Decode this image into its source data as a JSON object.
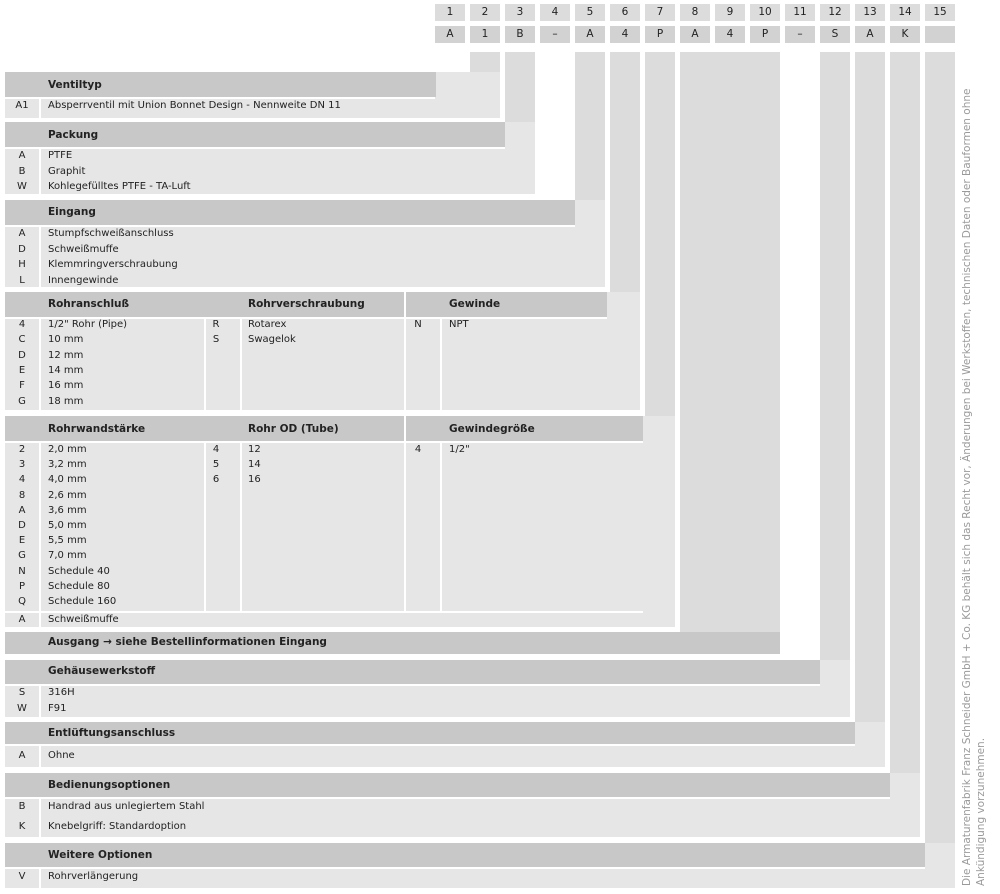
{
  "positions": [
    "1",
    "2",
    "3",
    "4",
    "5",
    "6",
    "7",
    "8",
    "9",
    "10",
    "11",
    "12",
    "13",
    "14",
    "15"
  ],
  "code_values": [
    "A",
    "1",
    "B",
    "–",
    "A",
    "4",
    "P",
    "A",
    "4",
    "P",
    "–",
    "S",
    "A",
    "K",
    ""
  ],
  "sections": {
    "ventiltyp": {
      "title": "Ventiltyp",
      "rows": [
        {
          "code": "A1",
          "text": "Absperrventil mit Union Bonnet Design - Nennweite DN 11"
        }
      ]
    },
    "packung": {
      "title": "Packung",
      "rows": [
        {
          "code": "A",
          "text": "PTFE"
        },
        {
          "code": "B",
          "text": "Graphit"
        },
        {
          "code": "W",
          "text": "Kohlegefülltes PTFE - TA-Luft"
        }
      ]
    },
    "eingang": {
      "title": "Eingang",
      "rows": [
        {
          "code": "A",
          "text": "Stumpfschweißanschluss"
        },
        {
          "code": "D",
          "text": "Schweißmuffe"
        },
        {
          "code": "H",
          "text": "Klemmringverschraubung"
        },
        {
          "code": "L",
          "text": "Innengewinde"
        }
      ]
    },
    "rohranschluss": {
      "title": "Rohranschluß",
      "rows": [
        {
          "code": "4",
          "text": "1/2\" Rohr (Pipe)"
        },
        {
          "code": "C",
          "text": "10 mm"
        },
        {
          "code": "D",
          "text": "12 mm"
        },
        {
          "code": "E",
          "text": "14 mm"
        },
        {
          "code": "F",
          "text": "16 mm"
        },
        {
          "code": "G",
          "text": "18 mm"
        }
      ]
    },
    "rohrverschraubung": {
      "title": "Rohrverschraubung",
      "rows": [
        {
          "code": "R",
          "text": "Rotarex"
        },
        {
          "code": "S",
          "text": "Swagelok"
        }
      ]
    },
    "gewinde": {
      "title": "Gewinde",
      "rows": [
        {
          "code": "N",
          "text": "NPT"
        }
      ]
    },
    "rohrwandstaerke": {
      "title": "Rohrwandstärke",
      "rows": [
        {
          "code": "2",
          "text": "2,0 mm"
        },
        {
          "code": "3",
          "text": "3,2 mm"
        },
        {
          "code": "4",
          "text": "4,0 mm"
        },
        {
          "code": "8",
          "text": "2,6 mm"
        },
        {
          "code": "A",
          "text": "3,6 mm"
        },
        {
          "code": "D",
          "text": "5,0 mm"
        },
        {
          "code": "E",
          "text": "5,5 mm"
        },
        {
          "code": "G",
          "text": "7,0 mm"
        },
        {
          "code": "N",
          "text": "Schedule 40"
        },
        {
          "code": "P",
          "text": "Schedule 80"
        },
        {
          "code": "Q",
          "text": "Schedule 160"
        }
      ]
    },
    "rohr_od": {
      "title": "Rohr OD (Tube)",
      "rows": [
        {
          "code": "4",
          "text": "12"
        },
        {
          "code": "5",
          "text": "14"
        },
        {
          "code": "6",
          "text": "16"
        }
      ]
    },
    "gewindegroesse": {
      "title": "Gewindegröße",
      "rows": [
        {
          "code": "4",
          "text": "1/2\""
        }
      ]
    },
    "schweissmuffe": {
      "code": "A",
      "text": "Schweißmuffe"
    },
    "ausgang": {
      "title": "Ausgang → siehe Bestellinformationen Eingang"
    },
    "gehaeusewerkstoff": {
      "title": "Gehäusewerkstoff",
      "rows": [
        {
          "code": "S",
          "text": "316H"
        },
        {
          "code": "W",
          "text": "F91"
        }
      ]
    },
    "entlueftung": {
      "title": "Entlüftungsanschluss",
      "rows": [
        {
          "code": "A",
          "text": "Ohne"
        }
      ]
    },
    "bedienung": {
      "title": "Bedienungsoptionen",
      "rows": [
        {
          "code": "B",
          "text": "Handrad aus unlegiertem Stahl"
        },
        {
          "code": "K",
          "text": "Knebelgriff: Standardoption"
        }
      ]
    },
    "weitere": {
      "title": "Weitere Optionen",
      "rows": [
        {
          "code": "V",
          "text": "Rohrverlängerung"
        }
      ]
    }
  },
  "side_note": "Die Armaturenfabrik Franz Schneider GmbH + Co. KG behält sich das Recht vor, Änderungen bei Werkstoffen, technischen Daten oder Bauformen ohne Ankündigung vorzunehmen."
}
